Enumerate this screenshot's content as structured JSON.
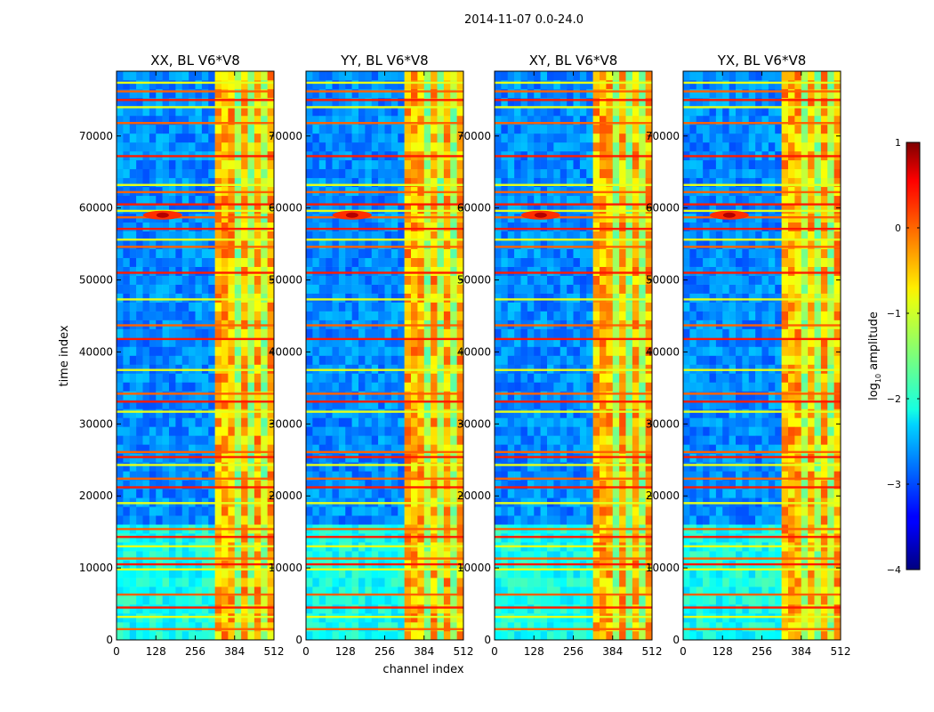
{
  "figure": {
    "suptitle": "2014-11-07 0.0-24.0",
    "xlabel": "channel index",
    "ylabel": "time index"
  },
  "chart_data": {
    "type": "heatmap",
    "panels": [
      {
        "title": "XX, BL V6*V8"
      },
      {
        "title": "YY, BL V6*V8"
      },
      {
        "title": "XY, BL V6*V8"
      },
      {
        "title": "YX, BL V6*V8"
      }
    ],
    "xlim": [
      0,
      512
    ],
    "ylim": [
      0,
      79000
    ],
    "x_ticks": [
      0,
      128,
      256,
      384,
      512
    ],
    "y_ticks": [
      0,
      10000,
      20000,
      30000,
      40000,
      50000,
      60000,
      70000
    ],
    "colorbar": {
      "label": "log10 amplitude",
      "label_main": "log",
      "label_sub": "10",
      "label_rest": " amplitude",
      "range": [
        -4,
        1
      ],
      "ticks": [
        1,
        0,
        -1,
        -2,
        -3,
        -4
      ],
      "tick_labels": [
        "1",
        "0",
        "−1",
        "−2",
        "−3",
        "−4"
      ],
      "colormap": "jet"
    },
    "features": {
      "rfi_band_channels": [
        [
          325,
          390
        ],
        [
          400,
          420
        ],
        [
          440,
          470
        ],
        [
          485,
          505
        ]
      ],
      "bright_source": {
        "channel": 150,
        "time": 59000
      },
      "rfi_time_bands": [
        1500,
        3200,
        4500,
        6300,
        9800,
        10500,
        11300,
        13000,
        14300,
        15400,
        19000,
        21200,
        22400,
        24300,
        25400,
        26100,
        31700,
        33100,
        34200,
        37500,
        41800,
        43700,
        47300,
        51000,
        54600,
        55600,
        57100,
        58700,
        59600,
        60500,
        62200,
        63200,
        67200,
        71800,
        74000,
        75000,
        76200,
        77400
      ]
    }
  }
}
